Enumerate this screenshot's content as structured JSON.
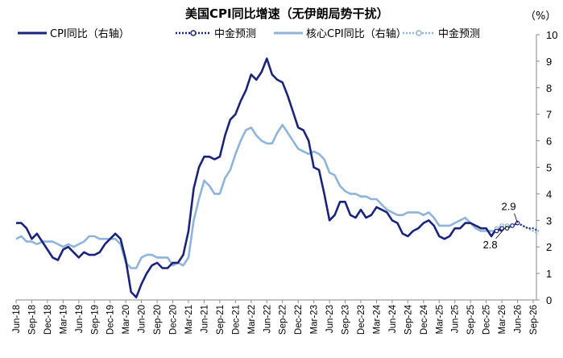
{
  "chart_data": {
    "type": "line",
    "title": "美国CPI同比增速（无伊朗局势干扰）",
    "unit_label": "（%）",
    "y_axis": "right",
    "ylim": [
      0,
      10
    ],
    "yticks": [
      "0",
      "1",
      "2",
      "3",
      "4",
      "5",
      "6",
      "7",
      "8",
      "9",
      "10"
    ],
    "x_start": "2018-06",
    "x_end": "2026-09",
    "xticks": [
      "Jun-18",
      "Sep-18",
      "Dec-18",
      "Mar-19",
      "Jun-19",
      "Sep-19",
      "Dec-19",
      "Mar-20",
      "Jun-20",
      "Sep-20",
      "Dec-20",
      "Mar-21",
      "Jun-21",
      "Sep-21",
      "Dec-21",
      "Mar-22",
      "Jun-22",
      "Sep-22",
      "Dec-22",
      "Mar-23",
      "Jun-23",
      "Sep-23",
      "Dec-23",
      "Mar-24",
      "Jun-24",
      "Sep-24",
      "Dec-24",
      "Mar-25",
      "Jun-25",
      "Sep-25",
      "Dec-25",
      "Mar-26",
      "Jun-26",
      "Sep-26"
    ],
    "colors": {
      "cpi": "#1b237a",
      "core": "#8fb4d9",
      "forecast_cpi": "#1b237a",
      "forecast_core": "#8fb4d9"
    },
    "legend": {
      "cpi": "CPI同比（右轴）",
      "cpi_forecast": "中金预测",
      "core": "核心CPI同比（右轴）",
      "core_forecast": "中金预测"
    },
    "annotations": [
      {
        "text": "2.9",
        "month": "2026-06",
        "value": 2.9
      },
      {
        "text": "2.8",
        "month": "2026-04",
        "value": 2.8
      }
    ],
    "series": [
      {
        "name": "CPI同比（右轴）",
        "key": "cpi",
        "start": "2018-06",
        "values": [
          2.9,
          2.9,
          2.7,
          2.3,
          2.5,
          2.2,
          1.9,
          1.6,
          1.5,
          1.9,
          2.0,
          1.8,
          1.6,
          1.8,
          1.7,
          1.7,
          1.8,
          2.1,
          2.3,
          2.5,
          2.3,
          1.5,
          0.3,
          0.1,
          0.6,
          1.0,
          1.3,
          1.4,
          1.2,
          1.2,
          1.4,
          1.4,
          1.7,
          2.6,
          4.2,
          5.0,
          5.4,
          5.4,
          5.3,
          5.4,
          6.2,
          6.8,
          7.0,
          7.5,
          7.9,
          8.5,
          8.3,
          8.6,
          9.1,
          8.5,
          8.3,
          8.2,
          7.7,
          7.1,
          6.5,
          6.4,
          6.0,
          5.0,
          4.9,
          4.0,
          3.0,
          3.2,
          3.7,
          3.7,
          3.2,
          3.1,
          3.4,
          3.1,
          3.2,
          3.5,
          3.4,
          3.3,
          3.0,
          2.9,
          2.5,
          2.4,
          2.6,
          2.7,
          2.9,
          3.0,
          2.8,
          2.4,
          2.3,
          2.4,
          2.7,
          2.7,
          2.9,
          2.9,
          2.8,
          2.7,
          2.7,
          2.4,
          2.7,
          2.6
        ]
      },
      {
        "name": "中金预测",
        "key": "cpi_forecast",
        "start": "2026-02",
        "values": [
          2.6,
          2.7,
          2.7,
          2.8,
          2.9,
          2.8,
          2.7,
          2.7,
          2.6
        ]
      },
      {
        "name": "核心CPI同比（右轴）",
        "key": "core",
        "start": "2018-06",
        "values": [
          2.3,
          2.4,
          2.2,
          2.2,
          2.1,
          2.2,
          2.2,
          2.2,
          2.1,
          2.0,
          2.1,
          2.0,
          2.1,
          2.2,
          2.4,
          2.4,
          2.3,
          2.3,
          2.3,
          2.3,
          2.1,
          1.4,
          1.2,
          1.2,
          1.6,
          1.7,
          1.7,
          1.6,
          1.6,
          1.6,
          1.3,
          1.4,
          1.3,
          1.6,
          3.0,
          3.8,
          4.5,
          4.3,
          4.0,
          4.0,
          4.6,
          4.9,
          5.5,
          6.0,
          6.4,
          6.5,
          6.2,
          6.0,
          5.9,
          5.9,
          6.3,
          6.6,
          6.3,
          6.0,
          5.7,
          5.6,
          5.5,
          5.6,
          5.5,
          5.3,
          4.8,
          4.7,
          4.3,
          4.1,
          4.0,
          4.0,
          3.9,
          3.9,
          3.8,
          3.8,
          3.6,
          3.4,
          3.3,
          3.2,
          3.2,
          3.3,
          3.3,
          3.3,
          3.2,
          3.3,
          3.1,
          2.8,
          2.8,
          2.8,
          2.9,
          3.0,
          3.1,
          2.9,
          2.7,
          2.6,
          2.6,
          2.6,
          2.6,
          2.8
        ]
      },
      {
        "name": "中金预测",
        "key": "core_forecast",
        "start": "2026-02",
        "values": [
          2.7,
          2.8,
          2.8,
          2.8,
          2.9,
          2.8,
          2.7,
          2.6,
          2.5
        ]
      }
    ]
  }
}
